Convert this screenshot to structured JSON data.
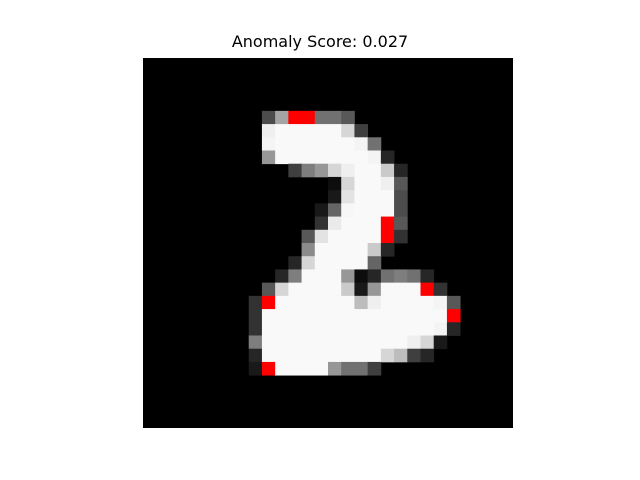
{
  "title": "Anomaly Score: 0.027",
  "image": {
    "rows": 28,
    "cols": 28,
    "background": "#000000",
    "foreground": "#fcfcfc",
    "anomaly_color": "#ff0000",
    "pixels": [
      [
        0,
        0,
        0,
        0,
        0,
        0,
        0,
        0,
        0,
        0,
        0,
        0,
        0,
        0,
        0,
        0,
        0,
        0,
        0,
        0,
        0,
        0,
        0,
        0,
        0,
        0,
        0,
        0
      ],
      [
        0,
        0,
        0,
        0,
        0,
        0,
        0,
        0,
        0,
        0,
        0,
        0,
        0,
        0,
        0,
        0,
        0,
        0,
        0,
        0,
        0,
        0,
        0,
        0,
        0,
        0,
        0,
        0
      ],
      [
        0,
        0,
        0,
        0,
        0,
        0,
        0,
        0,
        0,
        0,
        0,
        0,
        0,
        0,
        0,
        0,
        0,
        0,
        0,
        0,
        0,
        0,
        0,
        0,
        0,
        0,
        0,
        0
      ],
      [
        0,
        0,
        0,
        0,
        0,
        0,
        0,
        0,
        0,
        0,
        0,
        0,
        0,
        0,
        0,
        0,
        0,
        0,
        0,
        0,
        0,
        0,
        0,
        0,
        0,
        0,
        0,
        0
      ],
      [
        0,
        0,
        0,
        0,
        0,
        0,
        0,
        0,
        0,
        0.3,
        0.65,
        -1,
        -1,
        0.45,
        0.45,
        0.35,
        0,
        0,
        0,
        0,
        0,
        0,
        0,
        0,
        0,
        0,
        0,
        0
      ],
      [
        0,
        0,
        0,
        0,
        0,
        0,
        0,
        0,
        0,
        0.95,
        0.99,
        0.99,
        0.99,
        0.99,
        0.99,
        0.85,
        0.25,
        0,
        0,
        0,
        0,
        0,
        0,
        0,
        0,
        0,
        0,
        0
      ],
      [
        0,
        0,
        0,
        0,
        0,
        0,
        0,
        0,
        0,
        0.97,
        0.99,
        0.99,
        0.99,
        0.99,
        0.99,
        0.99,
        0.97,
        0.45,
        0,
        0,
        0,
        0,
        0,
        0,
        0,
        0,
        0,
        0
      ],
      [
        0,
        0,
        0,
        0,
        0,
        0,
        0,
        0,
        0,
        0.6,
        0.99,
        0.99,
        0.99,
        0.99,
        0.99,
        0.99,
        0.99,
        0.97,
        0.15,
        0,
        0,
        0,
        0,
        0,
        0,
        0,
        0,
        0
      ],
      [
        0,
        0,
        0,
        0,
        0,
        0,
        0,
        0,
        0,
        0,
        0,
        0.25,
        0.5,
        0.6,
        0.85,
        0.95,
        0.99,
        0.99,
        0.8,
        0.15,
        0,
        0,
        0,
        0,
        0,
        0,
        0,
        0
      ],
      [
        0,
        0,
        0,
        0,
        0,
        0,
        0,
        0,
        0,
        0,
        0,
        0,
        0,
        0,
        0.05,
        0.85,
        0.99,
        0.99,
        0.95,
        0.35,
        0,
        0,
        0,
        0,
        0,
        0,
        0,
        0
      ],
      [
        0,
        0,
        0,
        0,
        0,
        0,
        0,
        0,
        0,
        0,
        0,
        0,
        0,
        0,
        0.1,
        0.9,
        0.99,
        0.99,
        0.99,
        0.3,
        0,
        0,
        0,
        0,
        0,
        0,
        0,
        0
      ],
      [
        0,
        0,
        0,
        0,
        0,
        0,
        0,
        0,
        0,
        0,
        0,
        0,
        0,
        0.1,
        0.4,
        0.98,
        0.99,
        0.99,
        0.99,
        0.3,
        0,
        0,
        0,
        0,
        0,
        0,
        0,
        0
      ],
      [
        0,
        0,
        0,
        0,
        0,
        0,
        0,
        0,
        0,
        0,
        0,
        0,
        0,
        0.2,
        0.93,
        0.99,
        0.99,
        0.99,
        -1,
        0.35,
        0,
        0,
        0,
        0,
        0,
        0,
        0,
        0
      ],
      [
        0,
        0,
        0,
        0,
        0,
        0,
        0,
        0,
        0,
        0,
        0,
        0,
        0.35,
        0.9,
        0.99,
        0.99,
        0.99,
        0.99,
        -1,
        0.2,
        0,
        0,
        0,
        0,
        0,
        0,
        0,
        0
      ],
      [
        0,
        0,
        0,
        0,
        0,
        0,
        0,
        0,
        0,
        0,
        0,
        0,
        0.55,
        0.99,
        0.99,
        0.99,
        0.99,
        0.8,
        0.15,
        0,
        0,
        0,
        0,
        0,
        0,
        0,
        0,
        0
      ],
      [
        0,
        0,
        0,
        0,
        0,
        0,
        0,
        0,
        0,
        0,
        0,
        0.15,
        0.85,
        0.99,
        0.99,
        0.99,
        0.99,
        0.4,
        0,
        0,
        0,
        0,
        0,
        0,
        0,
        0,
        0,
        0
      ],
      [
        0,
        0,
        0,
        0,
        0,
        0,
        0,
        0,
        0,
        0,
        0.15,
        0.5,
        0.99,
        0.99,
        0.99,
        0.6,
        0.05,
        0.15,
        0.45,
        0.5,
        0.45,
        0.15,
        0,
        0,
        0,
        0,
        0,
        0
      ],
      [
        0,
        0,
        0,
        0,
        0,
        0,
        0,
        0,
        0,
        0.35,
        0.85,
        0.99,
        0.99,
        0.99,
        0.99,
        0.8,
        0.1,
        0.6,
        0.99,
        0.99,
        0.99,
        -1,
        0.2,
        0,
        0,
        0,
        0,
        0
      ],
      [
        0,
        0,
        0,
        0,
        0,
        0,
        0,
        0,
        0.2,
        -1,
        0.99,
        0.99,
        0.99,
        0.99,
        0.99,
        0.99,
        0.75,
        0.95,
        0.99,
        0.99,
        0.99,
        0.99,
        0.97,
        0.35,
        0,
        0,
        0,
        0
      ],
      [
        0,
        0,
        0,
        0,
        0,
        0,
        0,
        0,
        0.2,
        0.99,
        0.99,
        0.99,
        0.99,
        0.99,
        0.99,
        0.99,
        0.99,
        0.99,
        0.99,
        0.99,
        0.99,
        0.99,
        0.99,
        -1,
        0,
        0,
        0,
        0
      ],
      [
        0,
        0,
        0,
        0,
        0,
        0,
        0,
        0,
        0.2,
        0.99,
        0.99,
        0.99,
        0.99,
        0.99,
        0.99,
        0.99,
        0.99,
        0.99,
        0.99,
        0.99,
        0.99,
        0.99,
        0.97,
        0.15,
        0,
        0,
        0,
        0
      ],
      [
        0,
        0,
        0,
        0,
        0,
        0,
        0,
        0,
        0.5,
        0.99,
        0.99,
        0.99,
        0.99,
        0.99,
        0.99,
        0.99,
        0.99,
        0.99,
        0.99,
        0.99,
        0.95,
        0.85,
        0.1,
        0,
        0,
        0,
        0,
        0
      ],
      [
        0,
        0,
        0,
        0,
        0,
        0,
        0,
        0,
        0.15,
        0.99,
        0.99,
        0.99,
        0.99,
        0.99,
        0.99,
        0.99,
        0.99,
        0.99,
        0.85,
        0.75,
        0.25,
        0.15,
        0,
        0,
        0,
        0,
        0,
        0
      ],
      [
        0,
        0,
        0,
        0,
        0,
        0,
        0,
        0,
        0.1,
        -1,
        0.99,
        0.99,
        0.99,
        0.99,
        0.6,
        0.45,
        0.45,
        0.25,
        0,
        0,
        0,
        0,
        0,
        0,
        0,
        0,
        0,
        0
      ],
      [
        0,
        0,
        0,
        0,
        0,
        0,
        0,
        0,
        0,
        0,
        0,
        0,
        0,
        0,
        0,
        0,
        0,
        0,
        0,
        0,
        0,
        0,
        0,
        0,
        0,
        0,
        0,
        0
      ],
      [
        0,
        0,
        0,
        0,
        0,
        0,
        0,
        0,
        0,
        0,
        0,
        0,
        0,
        0,
        0,
        0,
        0,
        0,
        0,
        0,
        0,
        0,
        0,
        0,
        0,
        0,
        0,
        0
      ],
      [
        0,
        0,
        0,
        0,
        0,
        0,
        0,
        0,
        0,
        0,
        0,
        0,
        0,
        0,
        0,
        0,
        0,
        0,
        0,
        0,
        0,
        0,
        0,
        0,
        0,
        0,
        0,
        0
      ],
      [
        0,
        0,
        0,
        0,
        0,
        0,
        0,
        0,
        0,
        0,
        0,
        0,
        0,
        0,
        0,
        0,
        0,
        0,
        0,
        0,
        0,
        0,
        0,
        0,
        0,
        0,
        0,
        0
      ]
    ]
  }
}
